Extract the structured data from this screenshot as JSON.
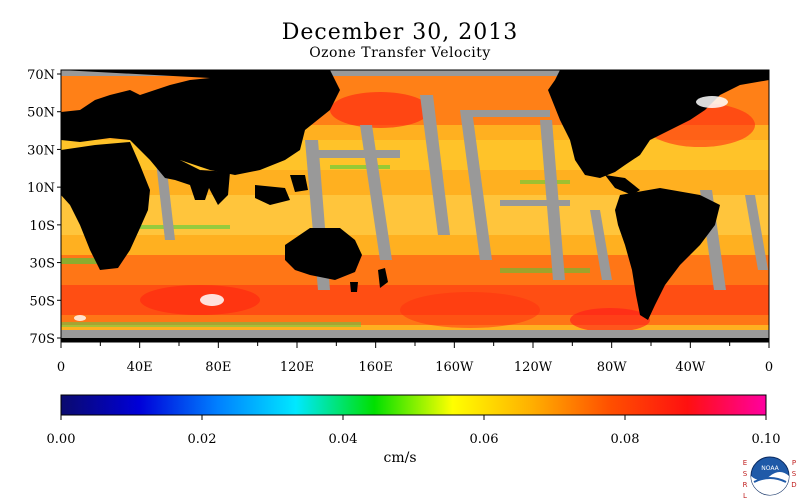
{
  "title": "December 30, 2013",
  "subtitle": "Ozone Transfer Velocity",
  "map": {
    "lat_labels": [
      "70N",
      "50N",
      "30N",
      "10N",
      "10S",
      "30S",
      "50S",
      "70S"
    ],
    "lon_labels": [
      "0",
      "40E",
      "80E",
      "120E",
      "160E",
      "160W",
      "120W",
      "80W",
      "40W",
      "0"
    ],
    "land_color": "#000000",
    "missing_color": "#999999"
  },
  "colorbar": {
    "tick_labels": [
      "0.00",
      "0.02",
      "0.04",
      "0.06",
      "0.08",
      "0.10"
    ],
    "units": "cm/s",
    "range": [
      0.0,
      0.1
    ],
    "colors": [
      "#0a0a6e",
      "#0000d8",
      "#0080ff",
      "#00e8ff",
      "#00e000",
      "#ffff00",
      "#ffb000",
      "#ff5000",
      "#ff1010",
      "#ff00a0"
    ]
  },
  "branding": {
    "left_letters": "ESRL",
    "right_letters": "PSD",
    "logo_text": "NOAA"
  }
}
